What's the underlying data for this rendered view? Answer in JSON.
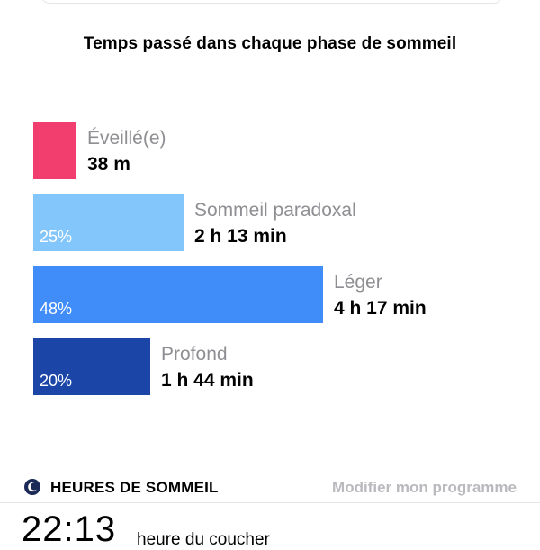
{
  "header": {
    "title": "Temps passé dans chaque phase de sommeil"
  },
  "chart_data": {
    "type": "bar",
    "stages": [
      {
        "name": "Éveillé(e)",
        "duration": "38 m",
        "percent": "",
        "minutes": 38,
        "color": "#f23d6f"
      },
      {
        "name": "Sommeil paradoxal",
        "duration": "2 h 13 min",
        "percent": "25%",
        "minutes": 133,
        "color": "#82c6fc"
      },
      {
        "name": "Léger",
        "duration": "4 h 17 min",
        "percent": "48%",
        "minutes": 257,
        "color": "#408cf8"
      },
      {
        "name": "Profond",
        "duration": "1 h 44 min",
        "percent": "20%",
        "minutes": 104,
        "color": "#1b46a8"
      }
    ]
  },
  "sleep_schedule": {
    "title": "HEURES DE SOMMEIL",
    "edit_label": "Modifier mon programme",
    "icon": "moon-icon",
    "bedtime": "22:13",
    "bedtime_label": "heure du coucher"
  }
}
